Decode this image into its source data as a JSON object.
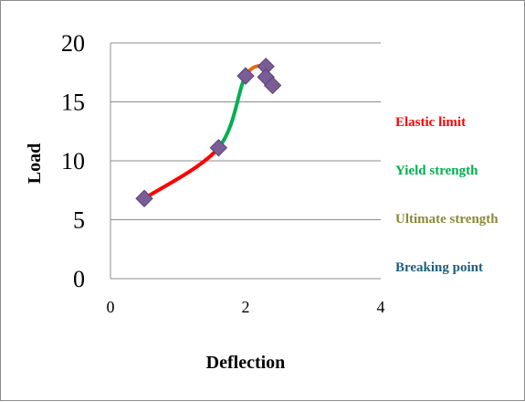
{
  "chart_data": {
    "type": "scatter",
    "xlabel": "Deflection",
    "ylabel": "Load",
    "xlim": [
      0,
      4
    ],
    "ylim": [
      0,
      20
    ],
    "x_ticks": [
      "0",
      "2",
      "4"
    ],
    "y_ticks": [
      "0",
      "5",
      "10",
      "15",
      "20"
    ],
    "grid": "horizontal",
    "legend_position": "right",
    "marker_color": "#7a5c96",
    "points": [
      {
        "x": 0.5,
        "y": 6.8
      },
      {
        "x": 1.6,
        "y": 11.1
      },
      {
        "x": 2.0,
        "y": 17.2
      },
      {
        "x": 2.3,
        "y": 18.0
      },
      {
        "x": 2.3,
        "y": 17.1
      },
      {
        "x": 2.4,
        "y": 16.4
      }
    ],
    "segments": [
      {
        "from": 0,
        "to": 1,
        "color": "#ff0000"
      },
      {
        "from": 1,
        "to": 2,
        "color": "#00b050"
      },
      {
        "from": 2,
        "to": 3,
        "color": "#e46c0a"
      },
      {
        "from": 3,
        "to": 4,
        "color": "#7a5c96"
      },
      {
        "from": 4,
        "to": 5,
        "color": "#7a5c96"
      }
    ],
    "legend": [
      {
        "label": "Elastic limit",
        "color": "#ff0000"
      },
      {
        "label": "Yield strength",
        "color": "#00b050"
      },
      {
        "label": "Ultimate strength",
        "color": "#8a8a3a"
      },
      {
        "label": "Breaking point",
        "color": "#1f5f7a"
      }
    ]
  }
}
